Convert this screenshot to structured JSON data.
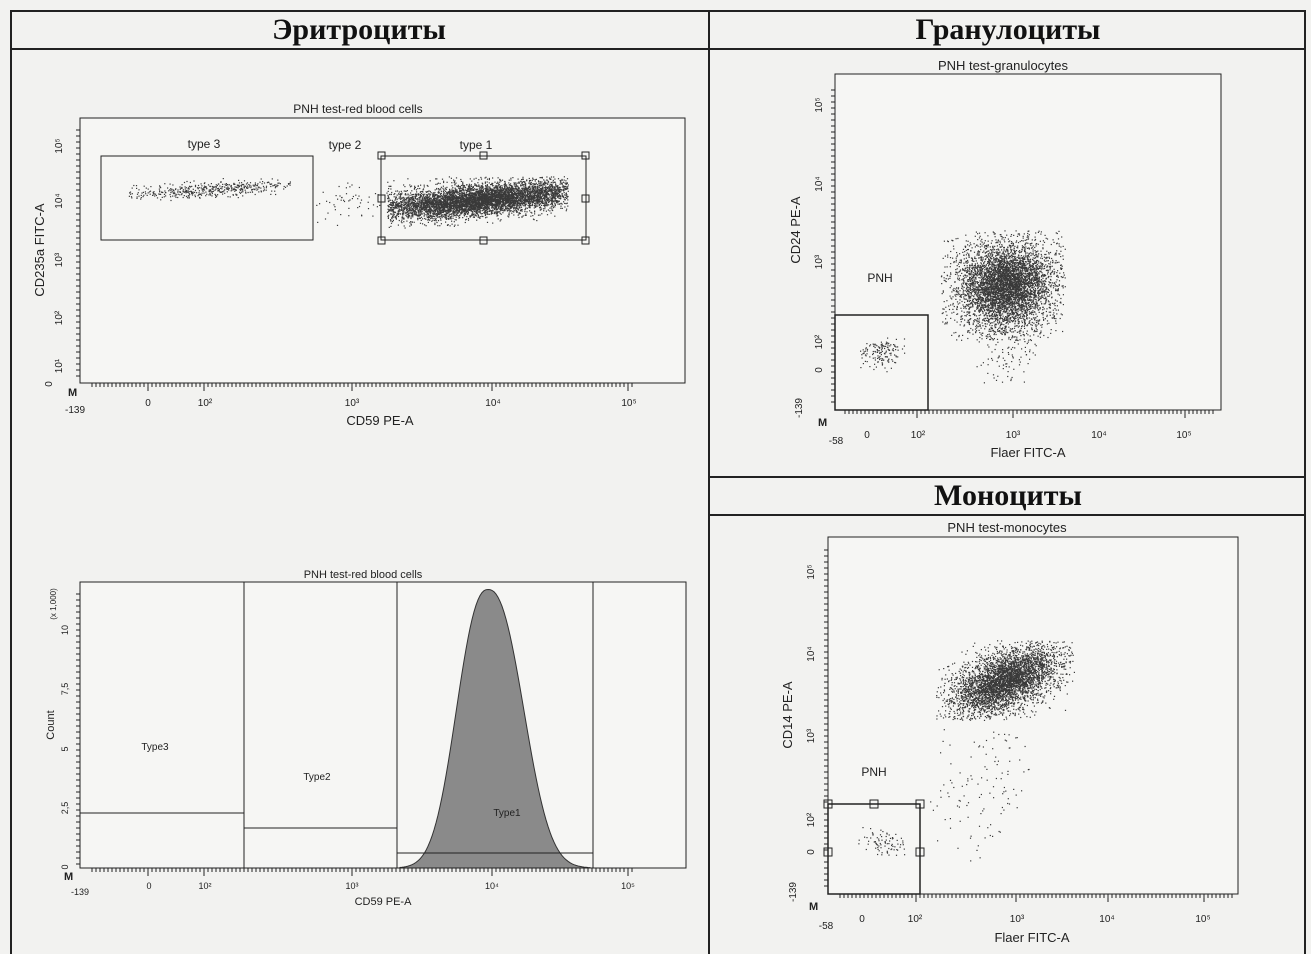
{
  "sections": {
    "erythrocytes": "Эритроциты",
    "granulocytes": "Гранулоциты",
    "monocytes": "Моноциты"
  },
  "colors": {
    "dots": "#3a3a3a",
    "histogram_fill": "#8a8a8a",
    "lines": "#222222"
  },
  "chart_data": [
    {
      "id": "rbc-dot",
      "type": "scatter",
      "title": "PNH test-red blood cells",
      "xlabel": "CD59 PE-A",
      "ylabel": "CD235a FITC-A",
      "x_ticks": [
        "-139",
        "0",
        "10²",
        "10³",
        "10⁴",
        "10⁵"
      ],
      "y_ticks": [
        "0",
        "10¹",
        "10²",
        "10³",
        "10⁴",
        "10⁵"
      ],
      "gates": [
        "type 3",
        "type 2",
        "type 1"
      ],
      "populations": [
        {
          "name": "type 3",
          "x": [
            0,
            200
          ],
          "y": [
            3000,
            30000
          ]
        },
        {
          "name": "type 1",
          "x": [
            2000,
            40000
          ],
          "y": [
            3000,
            30000
          ]
        }
      ]
    },
    {
      "id": "rbc-hist",
      "type": "area",
      "title": "PNH test-red blood cells",
      "xlabel": "CD59 PE-A",
      "ylabel": "Count",
      "y_multiplier": "(x 1,000)",
      "x_ticks": [
        "-139",
        "0",
        "10²",
        "10³",
        "10⁴",
        "10⁵"
      ],
      "y_ticks": [
        "0",
        "2,5",
        "5",
        "7,5",
        "10"
      ],
      "ylim": [
        0,
        11.5
      ],
      "regions": [
        "Type3",
        "Type2",
        "Type1"
      ],
      "peak": {
        "x": "10⁴",
        "count": 11.2
      }
    },
    {
      "id": "gran-dot",
      "type": "scatter",
      "title": "PNH test-granulocytes",
      "xlabel": "Flaer FITC-A",
      "ylabel": "CD24 PE-A",
      "x_ticks": [
        "-58",
        "0",
        "10²",
        "10³",
        "10⁴",
        "10⁵"
      ],
      "y_ticks": [
        "-139",
        "0",
        "10²",
        "10³",
        "10⁴",
        "10⁵"
      ],
      "gates": [
        "PNH"
      ],
      "populations": [
        {
          "name": "main",
          "x_center": "10³",
          "y_center": "10³"
        },
        {
          "name": "PNH",
          "x_center": "0",
          "y_center": "10²"
        }
      ]
    },
    {
      "id": "mono-dot",
      "type": "scatter",
      "title": "PNH test-monocytes",
      "xlabel": "Flaer FITC-A",
      "ylabel": "CD14 PE-A",
      "x_ticks": [
        "-58",
        "0",
        "10²",
        "10³",
        "10⁴",
        "10⁵"
      ],
      "y_ticks": [
        "-139",
        "0",
        "10²",
        "10³",
        "10⁴",
        "10⁵"
      ],
      "gates": [
        "PNH"
      ],
      "populations": [
        {
          "name": "main",
          "x_center": "10³",
          "y_center": "10⁴"
        },
        {
          "name": "PNH",
          "x_center": "0",
          "y_center": "0"
        }
      ]
    }
  ],
  "marker": "M"
}
